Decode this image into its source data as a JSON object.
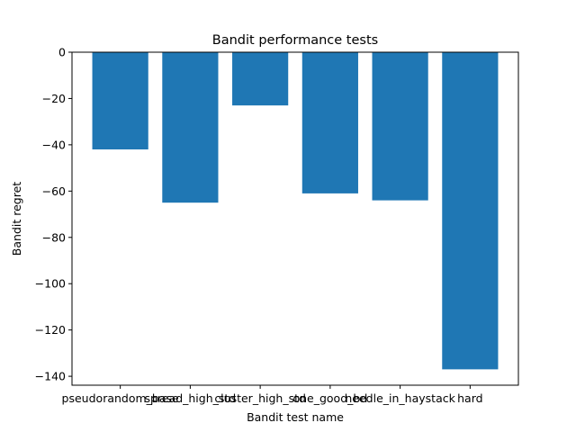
{
  "chart_data": {
    "type": "bar",
    "title": "Bandit performance tests",
    "xlabel": "Bandit test name",
    "ylabel": "Bandit regret",
    "categories": [
      "pseudorandom_base",
      "spread_high_std",
      "cluster_high_std",
      "one_good_bd",
      "needle_in_haystack",
      "hard"
    ],
    "values": [
      -42,
      -65,
      -23,
      -61,
      -64,
      -137
    ],
    "ylim": [
      -143.85,
      0
    ],
    "yticks": [
      0,
      -20,
      -40,
      -60,
      -80,
      -100,
      -120,
      -140
    ],
    "ytick_labels": [
      "0",
      "−20",
      "−40",
      "−60",
      "−80",
      "−100",
      "−120",
      "−140"
    ],
    "bar_color": "#1f77b4",
    "grid": false,
    "legend": "none"
  }
}
